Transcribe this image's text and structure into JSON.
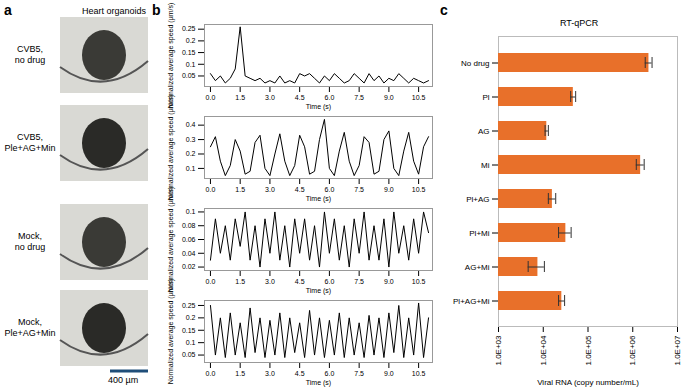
{
  "panels": [
    {
      "letter": "a",
      "title": "Heart organoids",
      "row_labels": [
        [
          "CVB5,",
          "no drug"
        ],
        [
          "CVB5,",
          "Ple+AG+Min"
        ],
        [
          "Mock,",
          "no drug"
        ],
        [
          "Mock,",
          "Ple+AG+Min"
        ]
      ],
      "scale_bar": "400 µm"
    },
    {
      "letter": "b"
    },
    {
      "letter": "c"
    }
  ],
  "chart_data": [
    {
      "type": "line",
      "x_label": "Time (s)",
      "y_label": "Normalized average speed (µm/s)",
      "x": [
        0,
        0.25,
        0.5,
        0.75,
        1,
        1.25,
        1.5,
        1.75,
        2,
        2.25,
        2.5,
        2.75,
        3,
        3.25,
        3.5,
        3.75,
        4,
        4.25,
        4.5,
        4.75,
        5,
        5.25,
        5.5,
        5.75,
        6,
        6.25,
        6.5,
        6.75,
        7,
        7.25,
        7.5,
        7.75,
        8,
        8.25,
        8.5,
        8.75,
        9,
        9.25,
        9.5,
        9.75,
        10,
        10.25,
        10.5,
        10.75,
        11
      ],
      "values": [
        0.06,
        0.03,
        0.05,
        0.02,
        0.04,
        0.08,
        0.26,
        0.05,
        0.04,
        0.03,
        0.04,
        0.02,
        0.03,
        0.02,
        0.05,
        0.02,
        0.03,
        0.02,
        0.06,
        0.05,
        0.06,
        0.04,
        0.02,
        0.05,
        0.03,
        0.06,
        0.04,
        0.02,
        0.03,
        0.06,
        0.04,
        0.02,
        0.06,
        0.03,
        0.05,
        0.02,
        0.04,
        0.03,
        0.06,
        0.04,
        0.02,
        0.04,
        0.03,
        0.02,
        0.03
      ],
      "color": "#000000",
      "xlim": [
        -0.3,
        11.2
      ],
      "xticks": [
        {
          "value": 0,
          "label": "0.0"
        },
        {
          "value": 1.5,
          "label": "1.5"
        },
        {
          "value": 3,
          "label": "3.0"
        },
        {
          "value": 4.5,
          "label": "4.5"
        },
        {
          "value": 6,
          "label": "6.0"
        },
        {
          "value": 7.5,
          "label": "7.5"
        },
        {
          "value": 9,
          "label": "9.0"
        },
        {
          "value": 10.5,
          "label": "10.5"
        }
      ],
      "ylim": [
        0.005,
        0.27
      ],
      "yticks": [
        0.05,
        0.1,
        0.15,
        0.2,
        0.25
      ]
    },
    {
      "type": "line",
      "x_label": "Time (s)",
      "y_label": "Normalized average speed (µm/s)",
      "x": [
        0,
        0.25,
        0.5,
        0.75,
        1,
        1.25,
        1.5,
        1.75,
        2,
        2.25,
        2.5,
        2.75,
        3,
        3.25,
        3.5,
        3.75,
        4,
        4.25,
        4.5,
        4.75,
        5,
        5.25,
        5.5,
        5.75,
        6,
        6.25,
        6.5,
        6.75,
        7,
        7.25,
        7.5,
        7.75,
        8,
        8.25,
        8.5,
        8.75,
        9,
        9.25,
        9.5,
        9.75,
        10,
        10.25,
        10.5,
        10.75,
        11
      ],
      "values": [
        0.25,
        0.32,
        0.15,
        0.05,
        0.12,
        0.3,
        0.22,
        0.06,
        0.08,
        0.28,
        0.33,
        0.1,
        0.05,
        0.2,
        0.34,
        0.15,
        0.05,
        0.12,
        0.33,
        0.25,
        0.06,
        0.08,
        0.3,
        0.44,
        0.1,
        0.05,
        0.22,
        0.35,
        0.15,
        0.05,
        0.12,
        0.32,
        0.28,
        0.06,
        0.08,
        0.3,
        0.36,
        0.1,
        0.05,
        0.22,
        0.35,
        0.15,
        0.06,
        0.25,
        0.32
      ],
      "color": "#000000",
      "xlim": [
        -0.3,
        11.2
      ],
      "xticks": [
        {
          "value": 0,
          "label": "0.0"
        },
        {
          "value": 1.5,
          "label": "1.5"
        },
        {
          "value": 3,
          "label": "3.0"
        },
        {
          "value": 4.5,
          "label": "4.5"
        },
        {
          "value": 6,
          "label": "6.0"
        },
        {
          "value": 7.5,
          "label": "7.5"
        },
        {
          "value": 9,
          "label": "9.0"
        },
        {
          "value": 10.5,
          "label": "10.5"
        }
      ],
      "ylim": [
        0.03,
        0.46
      ],
      "yticks": [
        0.1,
        0.2,
        0.3,
        0.4
      ]
    },
    {
      "type": "line",
      "x_label": "Time (s)",
      "y_label": "Normalized average speed (µm/s)",
      "x": [
        0,
        0.25,
        0.5,
        0.75,
        1,
        1.25,
        1.5,
        1.75,
        2,
        2.25,
        2.5,
        2.75,
        3,
        3.25,
        3.5,
        3.75,
        4,
        4.25,
        4.5,
        4.75,
        5,
        5.25,
        5.5,
        5.75,
        6,
        6.25,
        6.5,
        6.75,
        7,
        7.25,
        7.5,
        7.75,
        8,
        8.25,
        8.5,
        8.75,
        9,
        9.25,
        9.5,
        9.75,
        10,
        10.25,
        10.5,
        10.75,
        11
      ],
      "values": [
        0.03,
        0.09,
        0.04,
        0.08,
        0.03,
        0.09,
        0.05,
        0.1,
        0.03,
        0.08,
        0.02,
        0.09,
        0.04,
        0.1,
        0.03,
        0.08,
        0.02,
        0.09,
        0.04,
        0.09,
        0.03,
        0.08,
        0.02,
        0.1,
        0.04,
        0.09,
        0.03,
        0.08,
        0.02,
        0.09,
        0.04,
        0.1,
        0.03,
        0.08,
        0.03,
        0.09,
        0.02,
        0.1,
        0.04,
        0.08,
        0.03,
        0.09,
        0.04,
        0.1,
        0.07
      ],
      "color": "#000000",
      "xlim": [
        -0.3,
        11.2
      ],
      "xticks": [
        {
          "value": 0,
          "label": "0.0"
        },
        {
          "value": 1.5,
          "label": "1.5"
        },
        {
          "value": 3,
          "label": "3.0"
        },
        {
          "value": 4.5,
          "label": "4.5"
        },
        {
          "value": 6,
          "label": "6.0"
        },
        {
          "value": 7.5,
          "label": "7.5"
        },
        {
          "value": 9,
          "label": "9.0"
        },
        {
          "value": 10.5,
          "label": "10.5"
        }
      ],
      "ylim": [
        0.015,
        0.105
      ],
      "yticks": [
        0.02,
        0.04,
        0.06,
        0.08,
        0.1
      ]
    },
    {
      "type": "line",
      "x_label": "Time (s)",
      "y_label": "Normalized average speed (µm/s)",
      "x": [
        0,
        0.25,
        0.5,
        0.75,
        1,
        1.25,
        1.5,
        1.75,
        2,
        2.25,
        2.5,
        2.75,
        3,
        3.25,
        3.5,
        3.75,
        4,
        4.25,
        4.5,
        4.75,
        5,
        5.25,
        5.5,
        5.75,
        6,
        6.25,
        6.5,
        6.75,
        7,
        7.25,
        7.5,
        7.75,
        8,
        8.25,
        8.5,
        8.75,
        9,
        9.25,
        9.5,
        9.75,
        10,
        10.25,
        10.5,
        10.75,
        11
      ],
      "values": [
        0.25,
        0.05,
        0.2,
        0.04,
        0.22,
        0.05,
        0.18,
        0.04,
        0.24,
        0.06,
        0.2,
        0.04,
        0.19,
        0.05,
        0.22,
        0.04,
        0.2,
        0.06,
        0.18,
        0.04,
        0.23,
        0.05,
        0.2,
        0.04,
        0.19,
        0.05,
        0.22,
        0.04,
        0.2,
        0.05,
        0.18,
        0.04,
        0.21,
        0.05,
        0.2,
        0.04,
        0.22,
        0.06,
        0.25,
        0.04,
        0.2,
        0.05,
        0.26,
        0.04,
        0.2
      ],
      "color": "#000000",
      "xlim": [
        -0.3,
        11.2
      ],
      "xticks": [
        {
          "value": 0,
          "label": "0.0"
        },
        {
          "value": 1.5,
          "label": "1.5"
        },
        {
          "value": 3,
          "label": "3.0"
        },
        {
          "value": 4.5,
          "label": "4.5"
        },
        {
          "value": 6,
          "label": "6.0"
        },
        {
          "value": 7.5,
          "label": "7.5"
        },
        {
          "value": 9,
          "label": "9.0"
        },
        {
          "value": 10.5,
          "label": "10.5"
        }
      ],
      "ylim": [
        0.02,
        0.27
      ],
      "yticks": [
        0.05,
        0.1,
        0.15,
        0.2,
        0.25
      ]
    },
    {
      "type": "bar",
      "title": "RT-qPCR",
      "orientation": "horizontal",
      "log": "x",
      "x_label": "Viral RNA (copy number/mL)",
      "categories": [
        "No drug",
        "Pl",
        "AG",
        "Mi",
        "Pl+AG",
        "Pl+Mi",
        "AG+Mi",
        "Pl+AG+Mi"
      ],
      "values": [
        2300000,
        47000,
        12000,
        1500000,
        16000,
        32000,
        7600,
        26000
      ],
      "errors": [
        400000,
        6000,
        1000,
        300000,
        3000,
        10000,
        3000,
        4000
      ],
      "color": "#e8702a",
      "xlim": [
        1000,
        10000000
      ],
      "xticks": [
        {
          "value": 1000,
          "label": "1.0E+03"
        },
        {
          "value": 10000,
          "label": "1.0E+04"
        },
        {
          "value": 100000,
          "label": "1.0E+05"
        },
        {
          "value": 1000000,
          "label": "1.0E+06"
        },
        {
          "value": 10000000,
          "label": "1.0E+07"
        }
      ]
    }
  ]
}
